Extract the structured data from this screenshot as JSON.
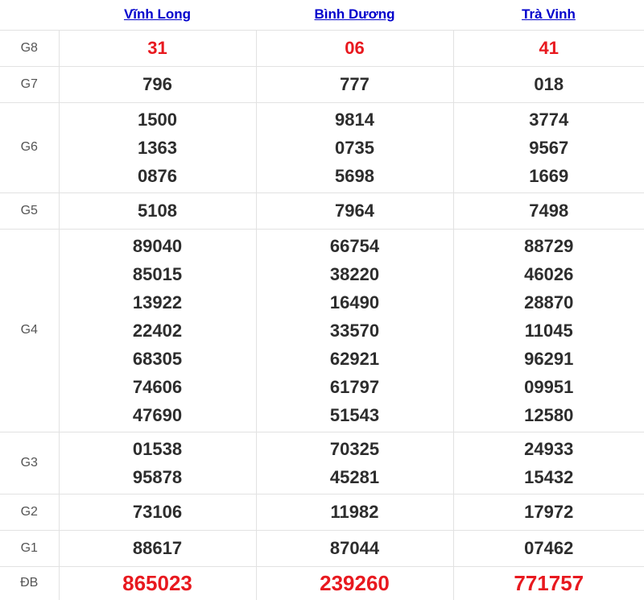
{
  "table": {
    "columns": [
      {
        "label": "Vĩnh Long"
      },
      {
        "label": "Bình Dương"
      },
      {
        "label": "Trà Vinh"
      }
    ],
    "rows": [
      {
        "label": "G8",
        "emphasis": "red",
        "values": [
          [
            "31"
          ],
          [
            "06"
          ],
          [
            "41"
          ]
        ]
      },
      {
        "label": "G7",
        "emphasis": "none",
        "values": [
          [
            "796"
          ],
          [
            "777"
          ],
          [
            "018"
          ]
        ]
      },
      {
        "label": "G6",
        "emphasis": "none",
        "values": [
          [
            "1500",
            "1363",
            "0876"
          ],
          [
            "9814",
            "0735",
            "5698"
          ],
          [
            "3774",
            "9567",
            "1669"
          ]
        ]
      },
      {
        "label": "G5",
        "emphasis": "none",
        "values": [
          [
            "5108"
          ],
          [
            "7964"
          ],
          [
            "7498"
          ]
        ]
      },
      {
        "label": "G4",
        "emphasis": "none",
        "values": [
          [
            "89040",
            "85015",
            "13922",
            "22402",
            "68305",
            "74606",
            "47690"
          ],
          [
            "66754",
            "38220",
            "16490",
            "33570",
            "62921",
            "61797",
            "51543"
          ],
          [
            "88729",
            "46026",
            "28870",
            "11045",
            "96291",
            "09951",
            "12580"
          ]
        ]
      },
      {
        "label": "G3",
        "emphasis": "none",
        "values": [
          [
            "01538",
            "95878"
          ],
          [
            "70325",
            "45281"
          ],
          [
            "24933",
            "15432"
          ]
        ]
      },
      {
        "label": "G2",
        "emphasis": "none",
        "values": [
          [
            "73106"
          ],
          [
            "11982"
          ],
          [
            "17972"
          ]
        ]
      },
      {
        "label": "G1",
        "emphasis": "none",
        "values": [
          [
            "88617"
          ],
          [
            "87044"
          ],
          [
            "07462"
          ]
        ]
      },
      {
        "label": "ĐB",
        "emphasis": "red-large",
        "values": [
          [
            "865023"
          ],
          [
            "239260"
          ],
          [
            "771757"
          ]
        ]
      }
    ]
  },
  "colors": {
    "accent_red": "#e8191f",
    "link_blue": "#0000cc",
    "number_dark": "#2d2d2d",
    "label_gray": "#555555",
    "border_gray": "#e2e2e2"
  }
}
